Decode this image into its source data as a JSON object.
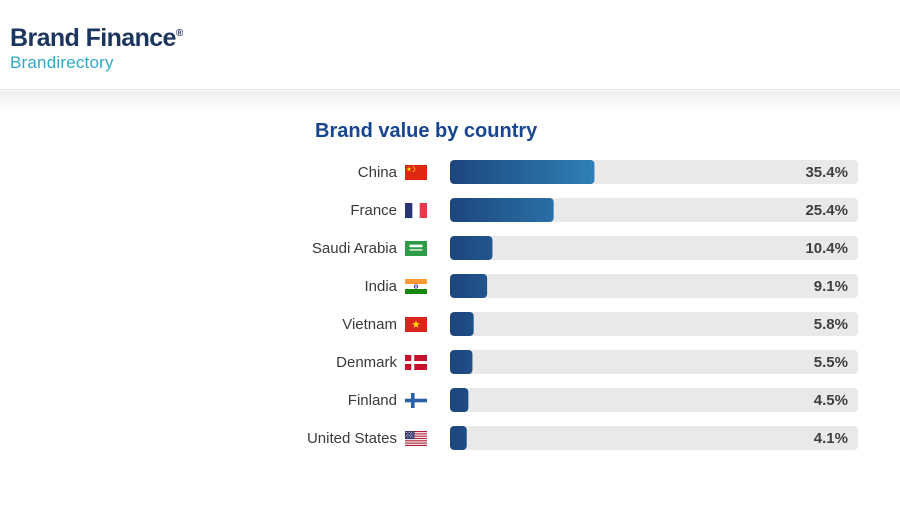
{
  "header": {
    "logo": {
      "title": "Brand Finance",
      "registered_mark": "®",
      "subtitle": "Brandirectory"
    }
  },
  "chart_data": {
    "type": "bar",
    "orientation": "horizontal",
    "title": "Brand value by country",
    "unit": "%",
    "xlim": [
      0,
      100
    ],
    "grid": false,
    "legend": "none",
    "categories": [
      "China",
      "France",
      "Saudi Arabia",
      "India",
      "Vietnam",
      "Denmark",
      "Finland",
      "United States"
    ],
    "values": [
      35.4,
      25.4,
      10.4,
      9.1,
      5.8,
      5.5,
      4.5,
      4.1
    ],
    "max_value": 35.4,
    "rows": [
      {
        "label": "China",
        "flag": "cn",
        "value": 35.4,
        "display": "35.4%"
      },
      {
        "label": "France",
        "flag": "fr",
        "value": 25.4,
        "display": "25.4%"
      },
      {
        "label": "Saudi Arabia",
        "flag": "sa",
        "value": 10.4,
        "display": "10.4%"
      },
      {
        "label": "India",
        "flag": "in",
        "value": 9.1,
        "display": "9.1%"
      },
      {
        "label": "Vietnam",
        "flag": "vn",
        "value": 5.8,
        "display": "5.8%"
      },
      {
        "label": "Denmark",
        "flag": "dk",
        "value": 5.5,
        "display": "5.5%"
      },
      {
        "label": "Finland",
        "flag": "fi",
        "value": 4.5,
        "display": "4.5%"
      },
      {
        "label": "United States",
        "flag": "us",
        "value": 4.1,
        "display": "4.1%"
      }
    ],
    "colors": {
      "bar_gradient_start": "#1d457e",
      "bar_gradient_end": "#2e80b6",
      "track": "#e9e9e9",
      "value_text": "#3f3f3f",
      "title": "#17458f",
      "label_text": "#3a3a3a",
      "logo_navy": "#1b355e",
      "logo_cyan": "#2fa9c7"
    }
  }
}
